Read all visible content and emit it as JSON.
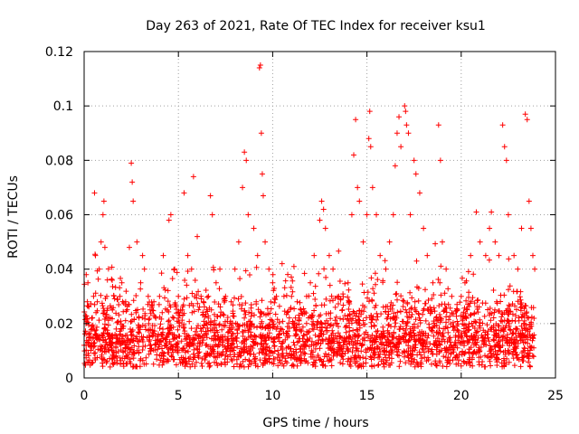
{
  "chart_data": {
    "type": "scatter",
    "title": "Day 263 of 2021, Rate Of TEC Index for receiver ksu1",
    "xlabel": "GPS time / hours",
    "ylabel": "ROTI / TECUs",
    "xlim": [
      0,
      25
    ],
    "ylim": [
      0,
      0.12
    ],
    "x_ticks": [
      "0",
      "5",
      "10",
      "15",
      "20",
      "25"
    ],
    "y_ticks": [
      "0",
      "0.02",
      "0.04",
      "0.06",
      "0.08",
      "0.1",
      "0.12"
    ],
    "x_tick_values": [
      0,
      5,
      10,
      15,
      20,
      25
    ],
    "y_tick_values": [
      0,
      0.02,
      0.04,
      0.06,
      0.08,
      0.1,
      0.12
    ],
    "grid": true,
    "legend": "none",
    "marker": "plus",
    "colors": {
      "points": "#ff0000",
      "grid": "#a0a0a0",
      "axes": "#000000"
    },
    "series": [
      {
        "points": [
          [
            0.0,
            0.012
          ],
          [
            0.1,
            0.02
          ],
          [
            0.2,
            0.035
          ],
          [
            0.3,
            0.015
          ],
          [
            0.4,
            0.022
          ],
          [
            0.5,
            0.03
          ],
          [
            0.55,
            0.068
          ],
          [
            0.6,
            0.045
          ],
          [
            0.7,
            0.028
          ],
          [
            0.8,
            0.04
          ],
          [
            0.9,
            0.05
          ],
          [
            1.0,
            0.06
          ],
          [
            1.05,
            0.065
          ],
          [
            1.1,
            0.048
          ],
          [
            1.2,
            0.03
          ],
          [
            1.3,
            0.022
          ],
          [
            1.5,
            0.025
          ],
          [
            1.7,
            0.018
          ],
          [
            1.9,
            0.03
          ],
          [
            2.0,
            0.035
          ],
          [
            2.2,
            0.028
          ],
          [
            2.4,
            0.048
          ],
          [
            2.5,
            0.079
          ],
          [
            2.55,
            0.072
          ],
          [
            2.6,
            0.065
          ],
          [
            2.8,
            0.05
          ],
          [
            3.0,
            0.035
          ],
          [
            3.1,
            0.045
          ],
          [
            3.2,
            0.04
          ],
          [
            3.4,
            0.03
          ],
          [
            3.5,
            0.025
          ],
          [
            3.7,
            0.028
          ],
          [
            3.8,
            0.022
          ],
          [
            4.0,
            0.03
          ],
          [
            4.2,
            0.045
          ],
          [
            4.5,
            0.058
          ],
          [
            4.6,
            0.06
          ],
          [
            4.8,
            0.04
          ],
          [
            5.0,
            0.03
          ],
          [
            5.2,
            0.025
          ],
          [
            5.3,
            0.068
          ],
          [
            5.5,
            0.045
          ],
          [
            5.7,
            0.04
          ],
          [
            5.8,
            0.074
          ],
          [
            6.0,
            0.052
          ],
          [
            6.2,
            0.03
          ],
          [
            6.5,
            0.025
          ],
          [
            6.7,
            0.067
          ],
          [
            6.8,
            0.06
          ],
          [
            7.0,
            0.035
          ],
          [
            7.2,
            0.04
          ],
          [
            7.5,
            0.03
          ],
          [
            7.8,
            0.028
          ],
          [
            8.0,
            0.04
          ],
          [
            8.2,
            0.05
          ],
          [
            8.4,
            0.07
          ],
          [
            8.5,
            0.083
          ],
          [
            8.6,
            0.08
          ],
          [
            8.7,
            0.06
          ],
          [
            9.0,
            0.055
          ],
          [
            9.2,
            0.045
          ],
          [
            9.3,
            0.114
          ],
          [
            9.35,
            0.115
          ],
          [
            9.4,
            0.09
          ],
          [
            9.45,
            0.075
          ],
          [
            9.5,
            0.067
          ],
          [
            9.6,
            0.05
          ],
          [
            9.8,
            0.04
          ],
          [
            10.0,
            0.035
          ],
          [
            10.2,
            0.03
          ],
          [
            10.5,
            0.042
          ],
          [
            10.8,
            0.038
          ],
          [
            11.0,
            0.03
          ],
          [
            11.3,
            0.028
          ],
          [
            11.5,
            0.025
          ],
          [
            11.8,
            0.03
          ],
          [
            12.0,
            0.035
          ],
          [
            12.2,
            0.045
          ],
          [
            12.5,
            0.058
          ],
          [
            12.6,
            0.065
          ],
          [
            12.7,
            0.062
          ],
          [
            12.8,
            0.055
          ],
          [
            13.0,
            0.045
          ],
          [
            13.2,
            0.04
          ],
          [
            13.5,
            0.03
          ],
          [
            13.7,
            0.025
          ],
          [
            14.0,
            0.035
          ],
          [
            14.2,
            0.06
          ],
          [
            14.3,
            0.082
          ],
          [
            14.4,
            0.095
          ],
          [
            14.5,
            0.07
          ],
          [
            14.6,
            0.065
          ],
          [
            14.8,
            0.05
          ],
          [
            15.0,
            0.06
          ],
          [
            15.1,
            0.088
          ],
          [
            15.15,
            0.098
          ],
          [
            15.2,
            0.085
          ],
          [
            15.3,
            0.07
          ],
          [
            15.5,
            0.06
          ],
          [
            15.7,
            0.045
          ],
          [
            16.0,
            0.04
          ],
          [
            16.2,
            0.05
          ],
          [
            16.4,
            0.06
          ],
          [
            16.5,
            0.078
          ],
          [
            16.6,
            0.09
          ],
          [
            16.7,
            0.096
          ],
          [
            16.8,
            0.085
          ],
          [
            17.0,
            0.1
          ],
          [
            17.05,
            0.098
          ],
          [
            17.1,
            0.093
          ],
          [
            17.2,
            0.09
          ],
          [
            17.3,
            0.06
          ],
          [
            17.5,
            0.08
          ],
          [
            17.6,
            0.075
          ],
          [
            17.8,
            0.068
          ],
          [
            18.0,
            0.055
          ],
          [
            18.2,
            0.045
          ],
          [
            18.5,
            0.035
          ],
          [
            18.8,
            0.093
          ],
          [
            18.9,
            0.08
          ],
          [
            19.0,
            0.05
          ],
          [
            19.2,
            0.04
          ],
          [
            19.5,
            0.03
          ],
          [
            19.8,
            0.025
          ],
          [
            20.0,
            0.03
          ],
          [
            20.2,
            0.035
          ],
          [
            20.5,
            0.045
          ],
          [
            20.8,
            0.061
          ],
          [
            21.0,
            0.05
          ],
          [
            21.3,
            0.045
          ],
          [
            21.5,
            0.055
          ],
          [
            21.6,
            0.061
          ],
          [
            21.8,
            0.05
          ],
          [
            22.0,
            0.045
          ],
          [
            22.2,
            0.093
          ],
          [
            22.3,
            0.085
          ],
          [
            22.4,
            0.08
          ],
          [
            22.5,
            0.06
          ],
          [
            22.8,
            0.045
          ],
          [
            23.0,
            0.04
          ],
          [
            23.2,
            0.055
          ],
          [
            23.4,
            0.097
          ],
          [
            23.5,
            0.095
          ],
          [
            23.6,
            0.065
          ],
          [
            23.7,
            0.055
          ],
          [
            23.8,
            0.045
          ],
          [
            23.9,
            0.04
          ]
        ]
      }
    ]
  }
}
